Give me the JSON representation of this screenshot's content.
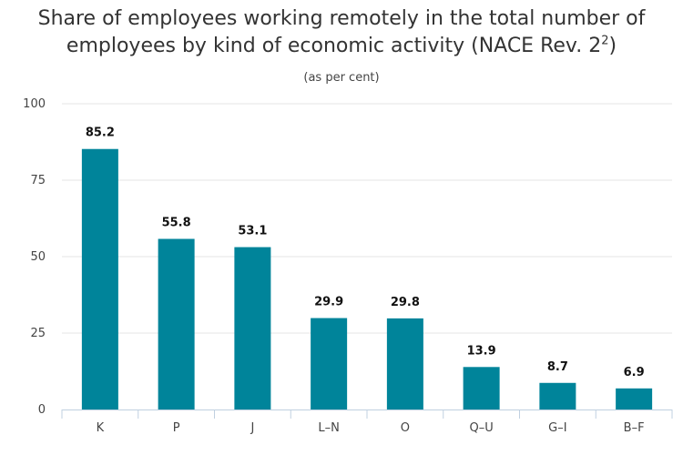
{
  "chart_data": {
    "type": "bar",
    "title_main": "Share of employees working remotely in the total number of employees by kind of economic activity (NACE Rev. 2",
    "title_superscript": "2",
    "title_close": ")",
    "subtitle": "(as per cent)",
    "categories": [
      "K",
      "P",
      "J",
      "L–N",
      "O",
      "Q–U",
      "G–I",
      "B–F"
    ],
    "values": [
      85.2,
      55.8,
      53.1,
      29.9,
      29.8,
      13.9,
      8.7,
      6.9
    ],
    "data_labels": [
      "85.2",
      "55.8",
      "53.1",
      "29.9",
      "29.8",
      "13.9",
      "8.7",
      "6.9"
    ],
    "y_ticks": [
      0,
      25,
      50,
      75,
      100
    ],
    "ylim": [
      0,
      100
    ],
    "grid": true,
    "legend": "none",
    "colors": {
      "bar": "#00849A",
      "grid": "#E6E6E6",
      "axis": "#C0D0E0"
    }
  }
}
